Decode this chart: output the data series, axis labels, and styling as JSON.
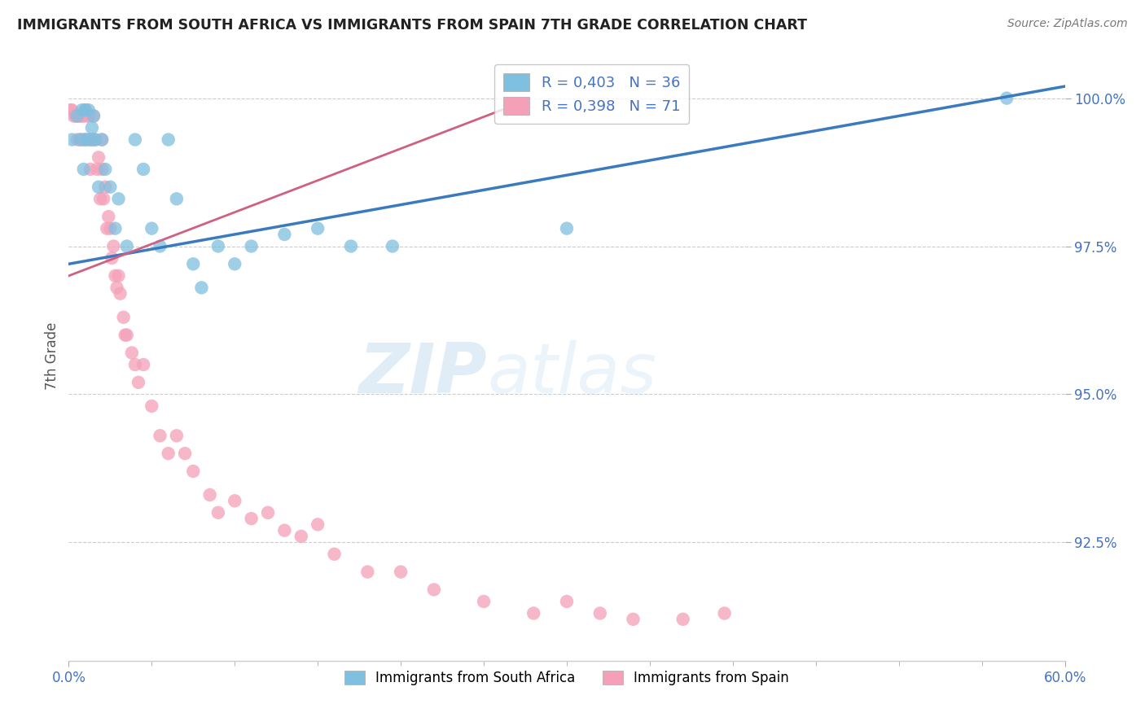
{
  "title": "IMMIGRANTS FROM SOUTH AFRICA VS IMMIGRANTS FROM SPAIN 7TH GRADE CORRELATION CHART",
  "source_text": "Source: ZipAtlas.com",
  "ylabel": "7th Grade",
  "xmin": 0.0,
  "xmax": 0.6,
  "ymin": 0.905,
  "ymax": 1.008,
  "ytick_labels": [
    "92.5%",
    "95.0%",
    "97.5%",
    "100.0%"
  ],
  "ytick_values": [
    0.925,
    0.95,
    0.975,
    1.0
  ],
  "xtick_labels": [
    "0.0%",
    "60.0%"
  ],
  "blue_color": "#7fbfdf",
  "pink_color": "#f4a0b8",
  "line_blue": "#3a7abf",
  "line_pink": "#d06080",
  "watermark1": "ZIP",
  "watermark2": "atlas",
  "south_africa_x": [
    0.002,
    0.005,
    0.007,
    0.008,
    0.009,
    0.01,
    0.01,
    0.012,
    0.013,
    0.014,
    0.015,
    0.016,
    0.018,
    0.02,
    0.022,
    0.025,
    0.028,
    0.03,
    0.035,
    0.04,
    0.045,
    0.05,
    0.055,
    0.06,
    0.065,
    0.075,
    0.08,
    0.09,
    0.1,
    0.11,
    0.13,
    0.15,
    0.17,
    0.195,
    0.3,
    0.565
  ],
  "south_africa_y": [
    0.993,
    0.997,
    0.993,
    0.998,
    0.988,
    0.998,
    0.993,
    0.998,
    0.993,
    0.995,
    0.997,
    0.993,
    0.985,
    0.993,
    0.988,
    0.985,
    0.978,
    0.983,
    0.975,
    0.993,
    0.988,
    0.978,
    0.975,
    0.993,
    0.983,
    0.972,
    0.968,
    0.975,
    0.972,
    0.975,
    0.977,
    0.978,
    0.975,
    0.975,
    0.978,
    1.0
  ],
  "spain_x": [
    0.001,
    0.002,
    0.003,
    0.004,
    0.005,
    0.005,
    0.006,
    0.007,
    0.007,
    0.008,
    0.009,
    0.009,
    0.01,
    0.01,
    0.011,
    0.011,
    0.012,
    0.013,
    0.013,
    0.014,
    0.015,
    0.015,
    0.016,
    0.017,
    0.018,
    0.019,
    0.02,
    0.02,
    0.021,
    0.022,
    0.023,
    0.024,
    0.025,
    0.026,
    0.027,
    0.028,
    0.029,
    0.03,
    0.031,
    0.033,
    0.034,
    0.035,
    0.038,
    0.04,
    0.042,
    0.045,
    0.05,
    0.055,
    0.06,
    0.065,
    0.07,
    0.075,
    0.085,
    0.09,
    0.1,
    0.11,
    0.12,
    0.13,
    0.14,
    0.15,
    0.16,
    0.18,
    0.2,
    0.22,
    0.25,
    0.28,
    0.3,
    0.32,
    0.34,
    0.37,
    0.395
  ],
  "spain_y": [
    0.998,
    0.998,
    0.997,
    0.997,
    0.997,
    0.993,
    0.997,
    0.997,
    0.993,
    0.997,
    0.997,
    0.993,
    0.998,
    0.993,
    0.997,
    0.993,
    0.997,
    0.993,
    0.988,
    0.993,
    0.997,
    0.993,
    0.993,
    0.988,
    0.99,
    0.983,
    0.993,
    0.988,
    0.983,
    0.985,
    0.978,
    0.98,
    0.978,
    0.973,
    0.975,
    0.97,
    0.968,
    0.97,
    0.967,
    0.963,
    0.96,
    0.96,
    0.957,
    0.955,
    0.952,
    0.955,
    0.948,
    0.943,
    0.94,
    0.943,
    0.94,
    0.937,
    0.933,
    0.93,
    0.932,
    0.929,
    0.93,
    0.927,
    0.926,
    0.928,
    0.923,
    0.92,
    0.92,
    0.917,
    0.915,
    0.913,
    0.915,
    0.913,
    0.912,
    0.912,
    0.913
  ]
}
